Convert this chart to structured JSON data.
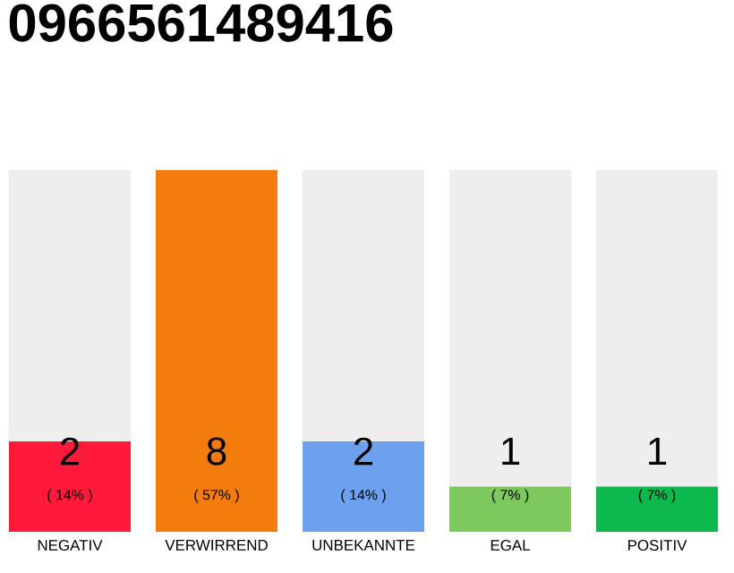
{
  "chart_data": {
    "type": "bar",
    "title": "0966561489416",
    "categories": [
      "NEGATIV",
      "VERWIRREND",
      "UNBEKANNTE",
      "EGAL",
      "POSITIV"
    ],
    "values": [
      2,
      8,
      2,
      1,
      1
    ],
    "colors": [
      "#ff1a3c",
      "#f47c0c",
      "#6ba1ee",
      "#7dc95e",
      "#0db84c"
    ],
    "ylim": [
      0,
      8
    ],
    "tick_labels": "x",
    "data_labels": true,
    "annotations": [
      "( 14% )",
      "( 57% )",
      "( 14% )",
      "( 7% )",
      "( 7% )"
    ]
  }
}
